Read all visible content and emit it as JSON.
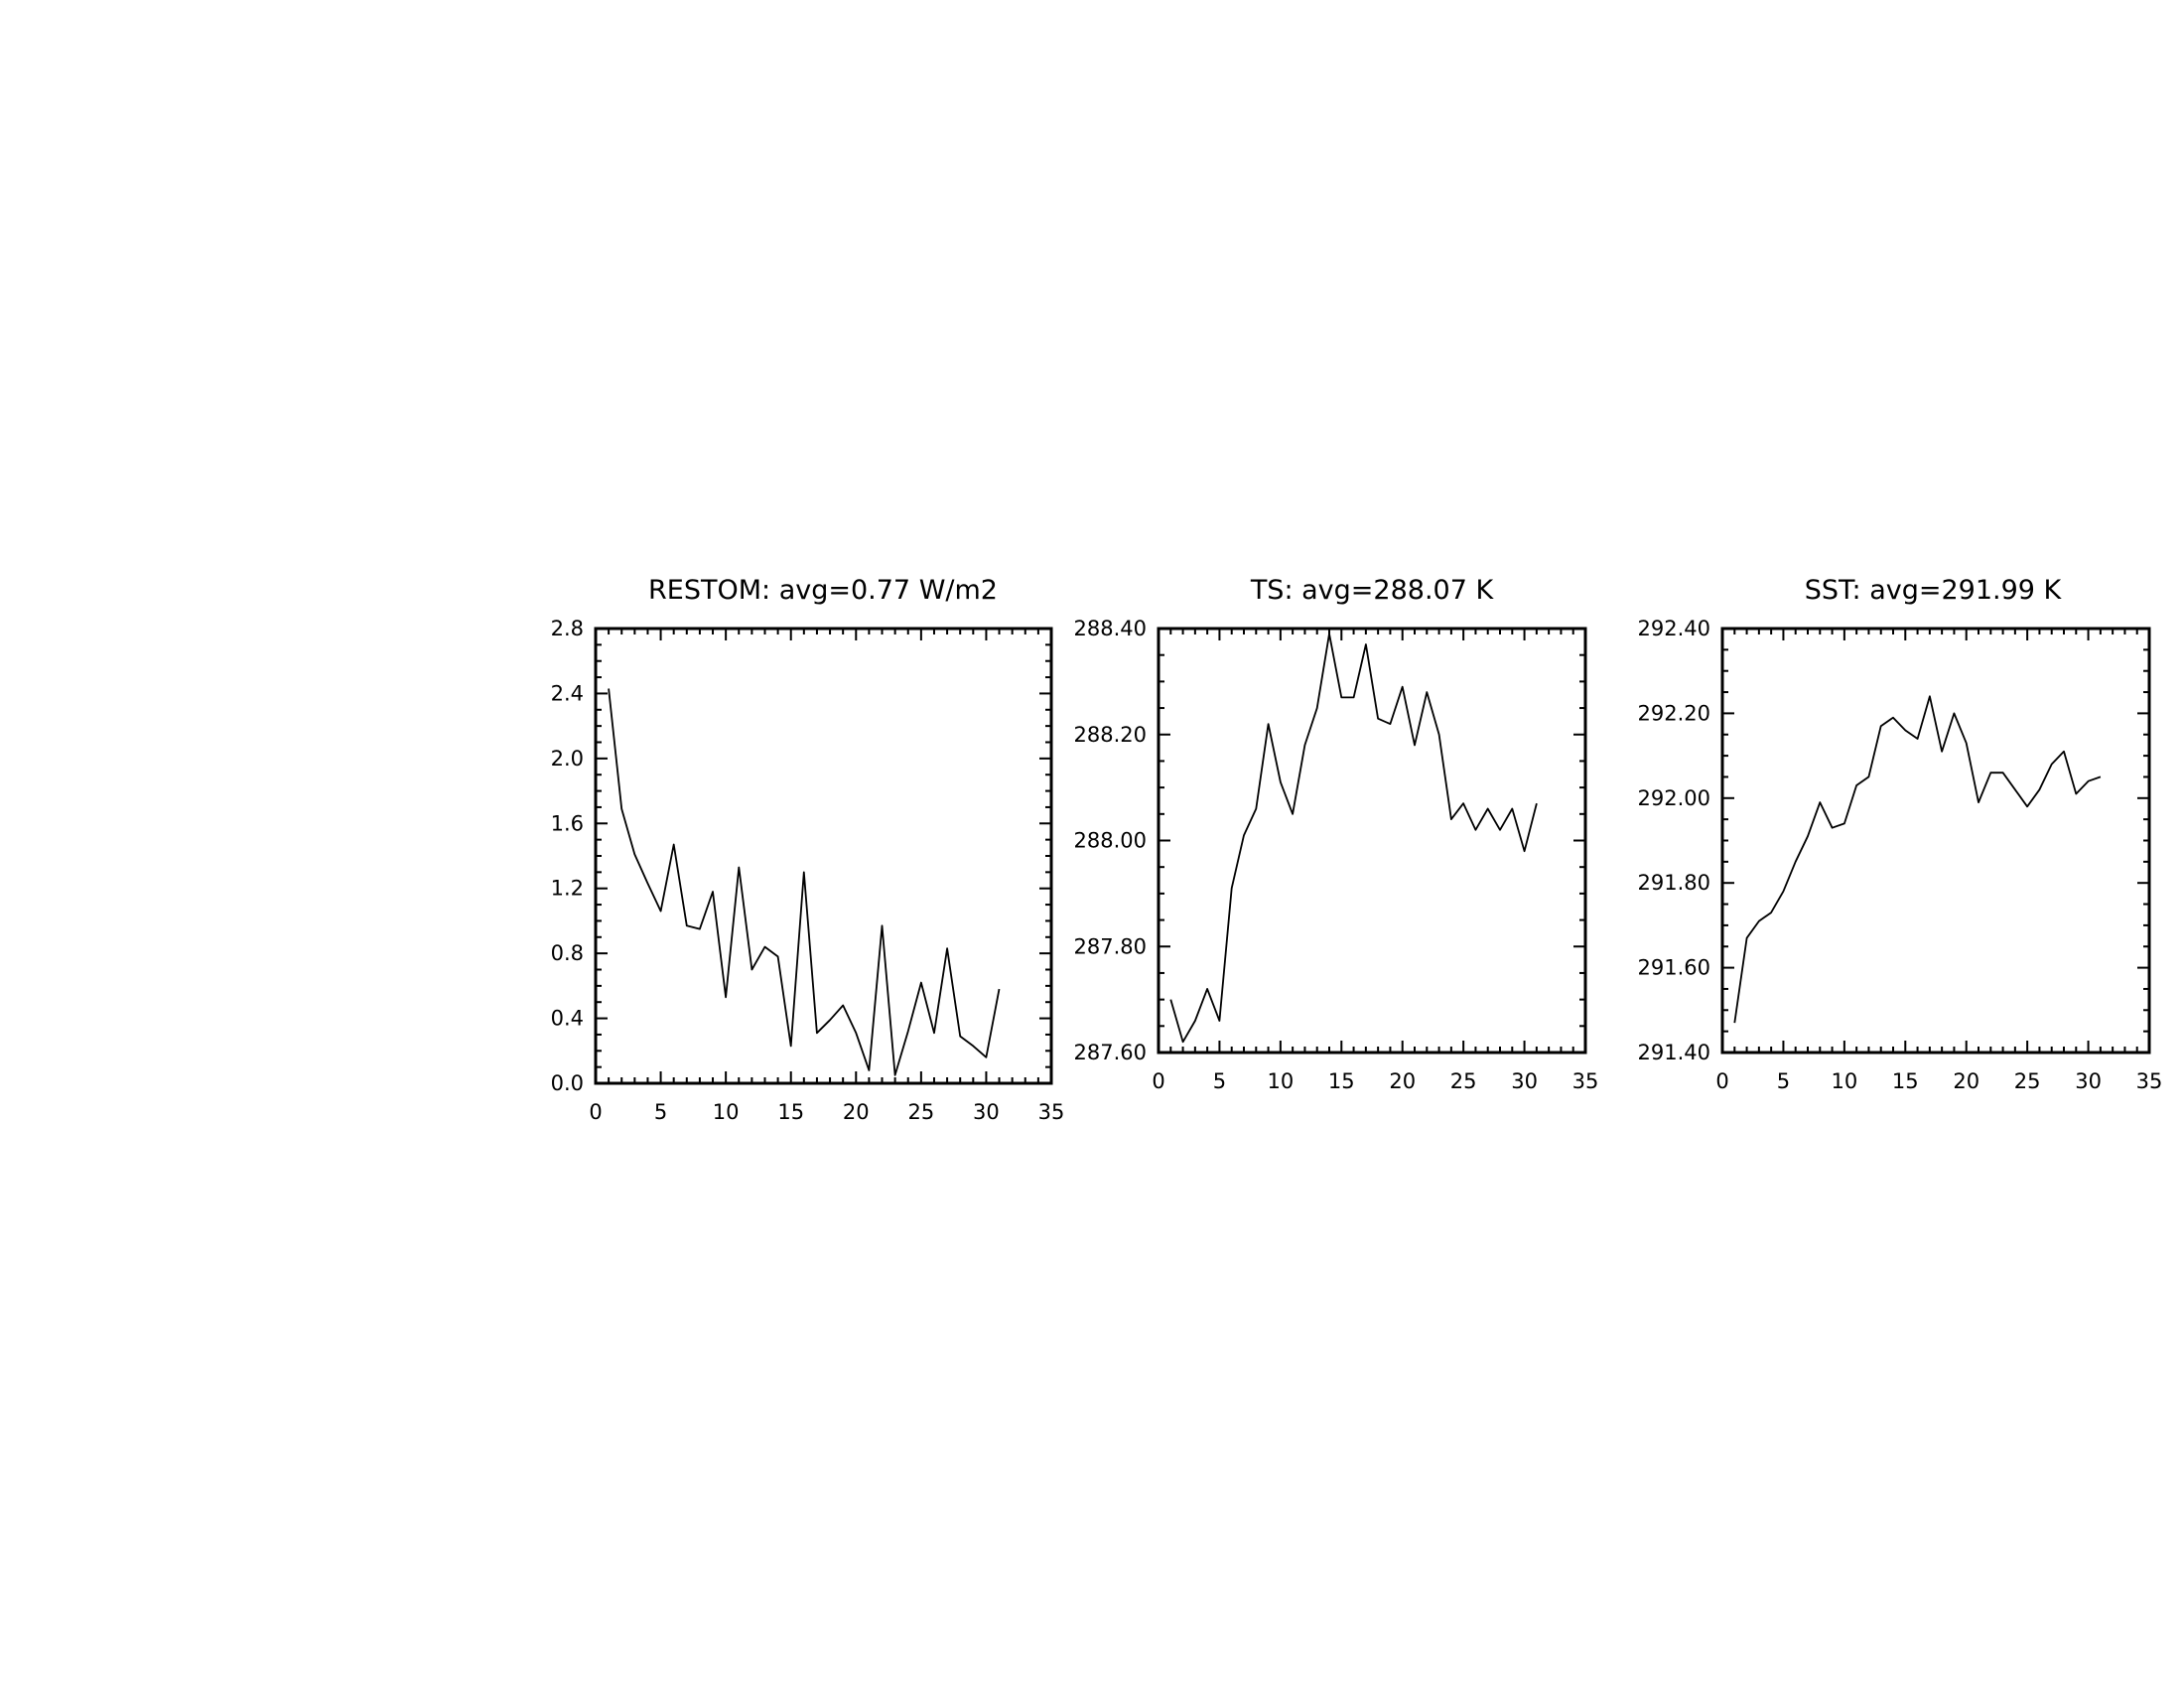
{
  "chart_data": [
    {
      "type": "line",
      "title": "RESTOM: avg=0.77 W/m2",
      "xlabel": "",
      "ylabel": "",
      "xlim": [
        0,
        35
      ],
      "ylim": [
        0.0,
        2.8
      ],
      "x_ticks": [
        "0",
        "5",
        "10",
        "15",
        "20",
        "25",
        "30",
        "35"
      ],
      "y_ticks": [
        "0.0",
        "0.4",
        "0.8",
        "1.2",
        "1.6",
        "2.0",
        "2.4",
        "2.8"
      ],
      "grid": false,
      "x": [
        1,
        2,
        3,
        4,
        5,
        6,
        7,
        8,
        9,
        10,
        11,
        12,
        13,
        14,
        15,
        16,
        17,
        18,
        19,
        20,
        21,
        22,
        23,
        24,
        25,
        26,
        27,
        28,
        29,
        30,
        31
      ],
      "values": [
        2.43,
        1.69,
        1.41,
        1.23,
        1.06,
        1.47,
        0.97,
        0.95,
        1.18,
        0.53,
        1.33,
        0.7,
        0.84,
        0.78,
        0.23,
        1.3,
        0.31,
        0.39,
        0.48,
        0.31,
        0.08,
        0.97,
        0.05,
        0.32,
        0.62,
        0.31,
        0.83,
        0.29,
        0.23,
        0.16,
        0.58
      ]
    },
    {
      "type": "line",
      "title": "TS: avg=288.07 K",
      "xlabel": "",
      "ylabel": "",
      "xlim": [
        0,
        35
      ],
      "ylim": [
        287.6,
        288.4
      ],
      "x_ticks": [
        "0",
        "5",
        "10",
        "15",
        "20",
        "25",
        "30",
        "35"
      ],
      "y_ticks": [
        "287.60",
        "287.80",
        "288.00",
        "288.20",
        "288.40"
      ],
      "grid": false,
      "x": [
        1,
        2,
        3,
        4,
        5,
        6,
        7,
        8,
        9,
        10,
        11,
        12,
        13,
        14,
        15,
        16,
        17,
        18,
        19,
        20,
        21,
        22,
        23,
        24,
        25,
        26,
        27,
        28,
        29,
        30,
        31
      ],
      "values": [
        287.7,
        287.62,
        287.66,
        287.72,
        287.66,
        287.91,
        288.01,
        288.06,
        288.22,
        288.11,
        288.05,
        288.18,
        288.25,
        288.39,
        288.27,
        288.27,
        288.37,
        288.23,
        288.22,
        288.29,
        288.18,
        288.28,
        288.2,
        288.04,
        288.07,
        288.02,
        288.06,
        288.02,
        288.06,
        287.98,
        288.07
      ]
    },
    {
      "type": "line",
      "title": "SST: avg=291.99 K",
      "xlabel": "",
      "ylabel": "",
      "xlim": [
        0,
        35
      ],
      "ylim": [
        291.4,
        292.4
      ],
      "x_ticks": [
        "0",
        "5",
        "10",
        "15",
        "20",
        "25",
        "30",
        "35"
      ],
      "y_ticks": [
        "291.40",
        "291.60",
        "291.80",
        "292.00",
        "292.20",
        "292.40"
      ],
      "grid": false,
      "x": [
        1,
        2,
        3,
        4,
        5,
        6,
        7,
        8,
        9,
        10,
        11,
        12,
        13,
        14,
        15,
        16,
        17,
        18,
        19,
        20,
        21,
        22,
        23,
        24,
        25,
        26,
        27,
        28,
        29,
        30,
        31
      ],
      "values": [
        291.47,
        291.67,
        291.71,
        291.73,
        291.78,
        291.85,
        291.91,
        291.99,
        291.93,
        291.94,
        292.03,
        292.05,
        292.17,
        292.19,
        292.16,
        292.14,
        292.24,
        292.11,
        292.2,
        292.13,
        291.99,
        292.06,
        292.06,
        292.02,
        291.98,
        292.02,
        292.08,
        292.11,
        292.01,
        292.04,
        292.05
      ]
    }
  ]
}
